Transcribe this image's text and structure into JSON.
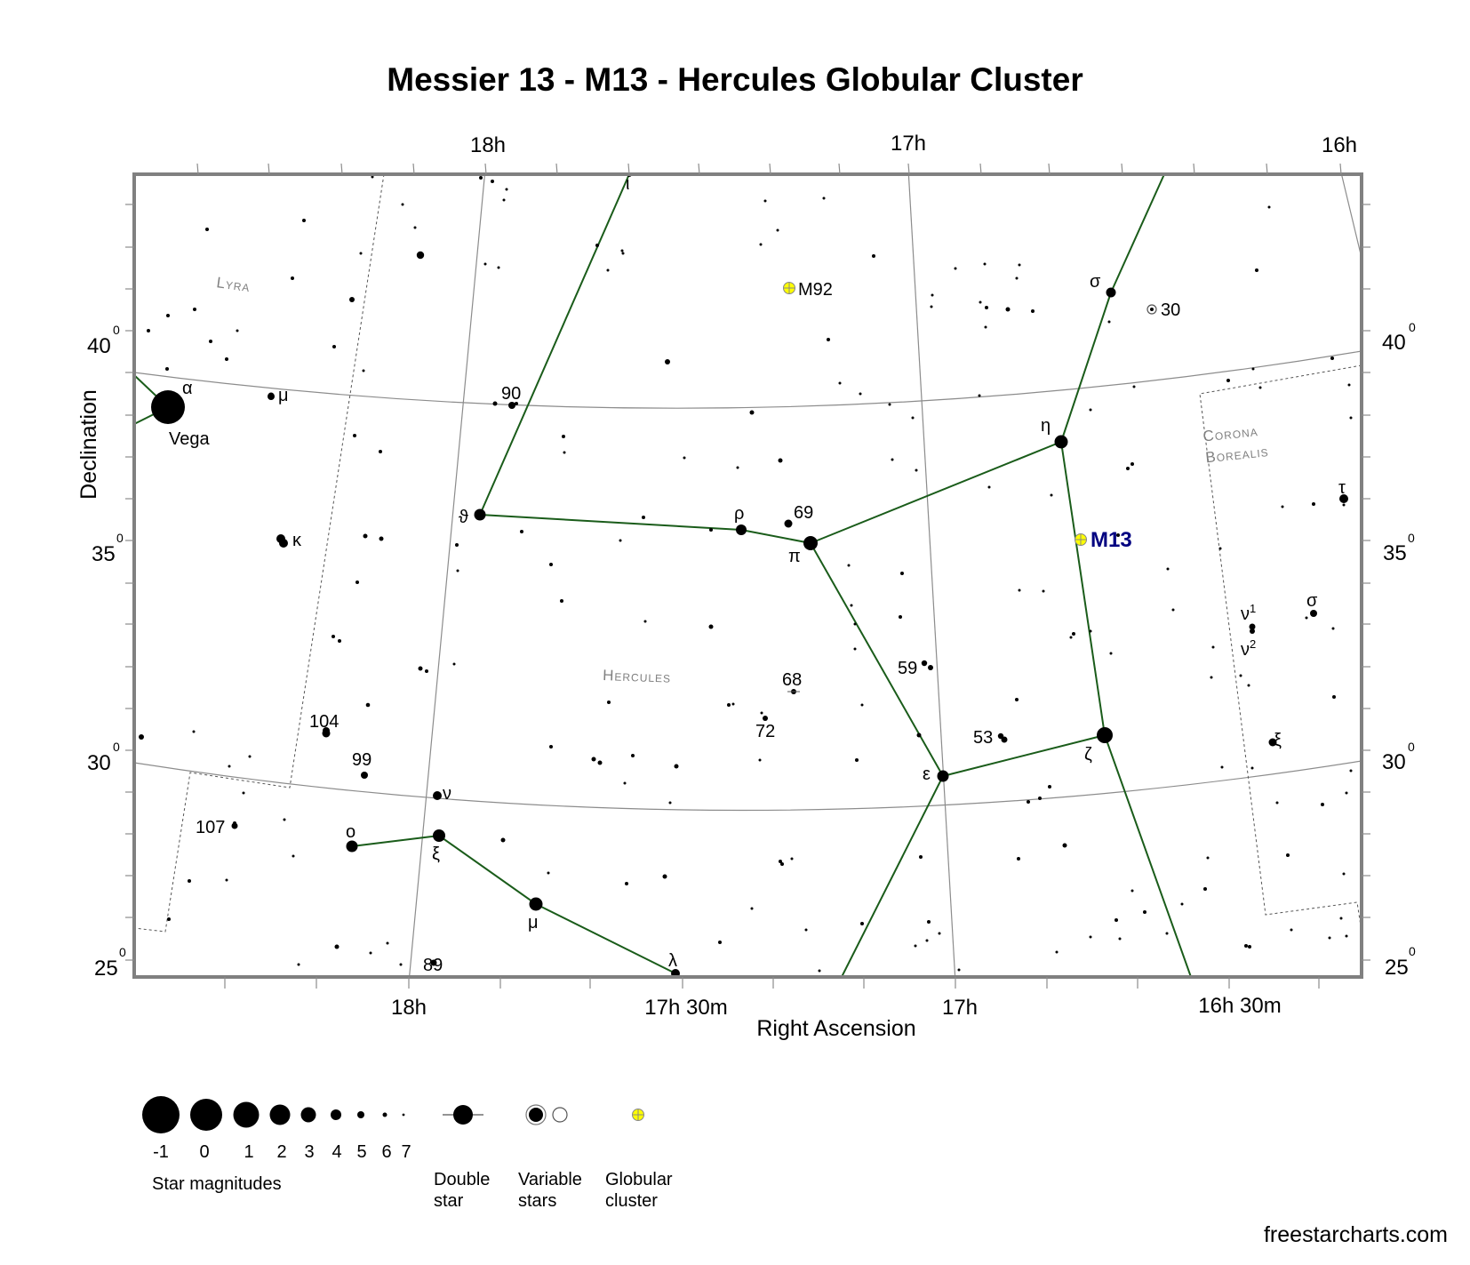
{
  "title": "Messier 13 - M13 - Hercules Globular Cluster",
  "credit": "freestarcharts.com",
  "colors": {
    "lines": "#1a5c1a",
    "grid": "#8c8c8c",
    "frame": "#808080",
    "cluster_fill": "#ffff00",
    "m13_label": "#000080"
  },
  "chart_data": {
    "type": "star-chart",
    "x_axis_label": "Right Ascension",
    "y_axis_label": "Declination",
    "ra_top_labels": [
      "18h",
      "17h",
      "16h"
    ],
    "ra_bottom_labels": [
      "18h",
      "17h 30m",
      "17h",
      "16h 30m"
    ],
    "dec_labels": [
      "40",
      "35",
      "30",
      "25"
    ],
    "degree_symbol": "0",
    "constellations": [
      "Lyra",
      "Hercules",
      "Corona Borealis"
    ],
    "deep_sky": [
      {
        "name": "M13",
        "type": "globular cluster",
        "highlight": true
      },
      {
        "name": "M92",
        "type": "globular cluster"
      }
    ],
    "labeled_stars": [
      "α",
      "Vega",
      "μ",
      "κ",
      "90",
      "ϑ",
      "ι",
      "ρ",
      "69",
      "π",
      "η",
      "σ",
      "30",
      "τ",
      "ν",
      "1",
      "2",
      "σ",
      "59",
      "68",
      "72",
      "53",
      "ζ",
      "ξ",
      "ε",
      "104",
      "99",
      "ν",
      "107",
      "ο",
      "ξ",
      "μ",
      "λ",
      "89"
    ]
  },
  "legend": {
    "magnitudes": [
      "-1",
      "0",
      "1",
      "2",
      "3",
      "4",
      "5",
      "6",
      "7"
    ],
    "magnitudes_caption": "Star magnitudes",
    "double_star": [
      "Double",
      "star"
    ],
    "variable_stars": [
      "Variable",
      "stars"
    ],
    "globular_cluster": [
      "Globular",
      "cluster"
    ]
  }
}
